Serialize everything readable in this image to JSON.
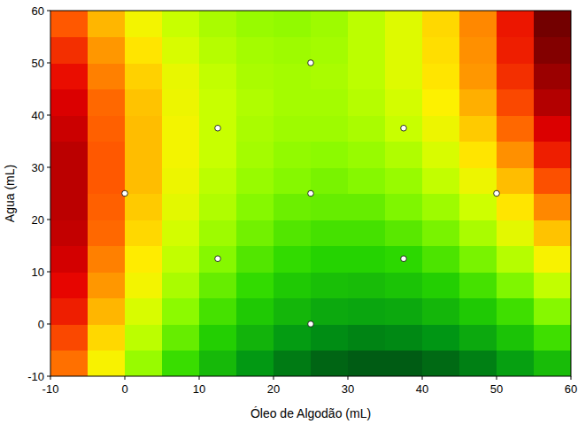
{
  "chart_data": {
    "type": "contour",
    "x_label": "Óleo de Algodão (mL)",
    "y_label": "Agua (mL)",
    "xlim": [
      -10,
      60
    ],
    "ylim": [
      -10,
      60
    ],
    "xticks": [
      -10,
      0,
      10,
      20,
      30,
      40,
      50,
      60
    ],
    "yticks": [
      -10,
      0,
      10,
      20,
      30,
      40,
      50,
      60
    ],
    "zlim": [
      0,
      12
    ],
    "cell_x": [
      -7.5,
      -2.5,
      2.5,
      7.5,
      12.5,
      17.5,
      22.5,
      27.5,
      32.5,
      37.5,
      42.5,
      47.5,
      52.5,
      57.5
    ],
    "cell_y": [
      -7.5,
      -2.5,
      2.5,
      7.5,
      12.5,
      17.5,
      22.5,
      27.5,
      32.5,
      37.5,
      42.5,
      47.5,
      52.5,
      57.5
    ],
    "cells": [
      [
        9.2,
        7.3,
        5.6,
        4.1,
        2.9,
        1.9,
        1.2,
        0.7,
        0.5,
        0.5,
        0.8,
        1.3,
        2.1,
        3.0
      ],
      [
        9.7,
        7.8,
        6.2,
        4.8,
        3.6,
        2.7,
        2.0,
        1.6,
        1.4,
        1.5,
        1.8,
        2.4,
        3.2,
        4.2
      ],
      [
        10.2,
        8.3,
        6.7,
        5.4,
        4.3,
        3.4,
        2.8,
        2.4,
        2.3,
        2.4,
        2.8,
        3.4,
        4.2,
        5.3
      ],
      [
        10.5,
        8.7,
        7.2,
        5.9,
        4.8,
        4.0,
        3.4,
        3.1,
        3.0,
        3.2,
        3.6,
        4.3,
        5.2,
        6.3
      ],
      [
        10.8,
        9.0,
        7.5,
        6.3,
        5.3,
        4.5,
        4.0,
        3.7,
        3.7,
        3.9,
        4.4,
        5.1,
        6.1,
        7.3
      ],
      [
        11.0,
        9.3,
        7.8,
        6.6,
        5.7,
        5.0,
        4.5,
        4.3,
        4.3,
        4.6,
        5.1,
        5.9,
        6.9,
        8.1
      ],
      [
        11.1,
        9.4,
        8.0,
        6.9,
        6.0,
        5.3,
        4.9,
        4.8,
        4.8,
        5.2,
        5.7,
        6.5,
        7.6,
        8.9
      ],
      [
        11.1,
        9.5,
        8.2,
        7.1,
        6.2,
        5.6,
        5.3,
        5.1,
        5.3,
        5.6,
        6.3,
        7.1,
        8.2,
        9.6
      ],
      [
        11.1,
        9.5,
        8.2,
        7.2,
        6.4,
        5.8,
        5.5,
        5.4,
        5.6,
        6.0,
        6.7,
        7.6,
        8.8,
        10.2
      ],
      [
        10.9,
        9.4,
        8.2,
        7.2,
        6.4,
        5.9,
        5.7,
        5.7,
        5.9,
        6.4,
        7.1,
        8.0,
        9.3,
        10.7
      ],
      [
        10.7,
        9.3,
        8.1,
        7.1,
        6.4,
        6.0,
        5.8,
        5.8,
        6.1,
        6.6,
        7.4,
        8.4,
        9.7,
        11.2
      ],
      [
        10.4,
        9.0,
        7.9,
        7.0,
        6.3,
        5.9,
        5.8,
        5.9,
        6.2,
        6.8,
        7.6,
        8.7,
        10.0,
        11.5
      ],
      [
        10.0,
        8.7,
        7.6,
        6.7,
        6.1,
        5.8,
        5.7,
        5.8,
        6.2,
        6.8,
        7.7,
        8.8,
        10.2,
        11.8
      ],
      [
        9.5,
        8.3,
        7.2,
        6.4,
        5.9,
        5.6,
        5.5,
        5.7,
        6.2,
        6.8,
        7.8,
        8.9,
        10.3,
        12.0
      ]
    ],
    "series": [
      {
        "type": "scatter",
        "marker": "circle",
        "color": "#ffffff",
        "x": [
          0,
          12.5,
          12.5,
          25,
          25,
          25,
          37.5,
          37.5,
          50
        ],
        "values": [
          25,
          37.5,
          12.5,
          50,
          25,
          0,
          37.5,
          12.5,
          25
        ]
      }
    ]
  }
}
